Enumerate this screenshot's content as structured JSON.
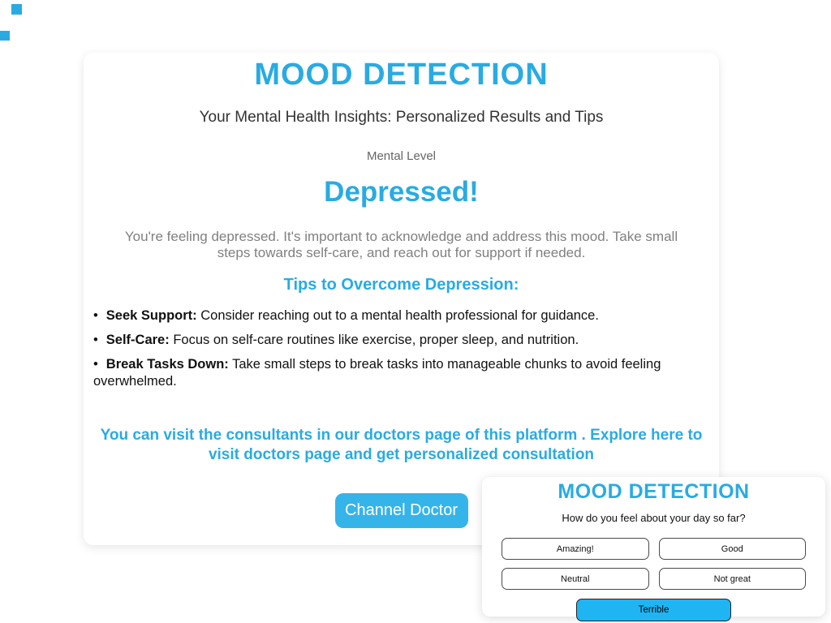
{
  "colors": {
    "accent": "#29ABE2",
    "channel_button_bg": "#35B4E9",
    "selected_option_bg": "#1FB5F2",
    "option_border": "#4a4a4a",
    "body_text": "#111111",
    "muted_text": "#808080",
    "page_background": "#ffffff"
  },
  "decor": {
    "squares": [
      {
        "name": "top-left-square-1",
        "color": "#29ABE2"
      },
      {
        "name": "top-left-square-2",
        "color": "#29ABE2"
      }
    ]
  },
  "main_card": {
    "title": "MOOD DETECTION",
    "subtitle": "Your Mental Health Insights: Personalized Results and Tips",
    "mental_level_label": "Mental Level",
    "mood": "Depressed!",
    "description": "You're feeling depressed. It's important to acknowledge and address this mood. Take small steps towards self-care, and reach out for support if needed.",
    "tips_heading": "Tips to Overcome Depression:",
    "tips": [
      {
        "bullet": "•",
        "label": "Seek Support:",
        "text": " Consider reaching out to a mental health professional for guidance."
      },
      {
        "bullet": "•",
        "label": "Self-Care:",
        "text": " Focus on self-care routines like exercise, proper sleep, and nutrition."
      },
      {
        "bullet": "•",
        "label": "Break Tasks Down:",
        "text": " Take small steps to break tasks into manageable chunks to avoid feeling overwhelmed."
      }
    ],
    "promo": "You can visit the consultants in our doctors page of this platform . Explore here to visit doctors page and get personalized consultation",
    "channel_button_label": "Channel Doctor"
  },
  "mini_card": {
    "title": "MOOD DETECTION",
    "question": "How do you feel about your day so far?",
    "options": [
      "Amazing!",
      "Good",
      "Neutral",
      "Not great"
    ],
    "selected_option": "Terrible"
  }
}
